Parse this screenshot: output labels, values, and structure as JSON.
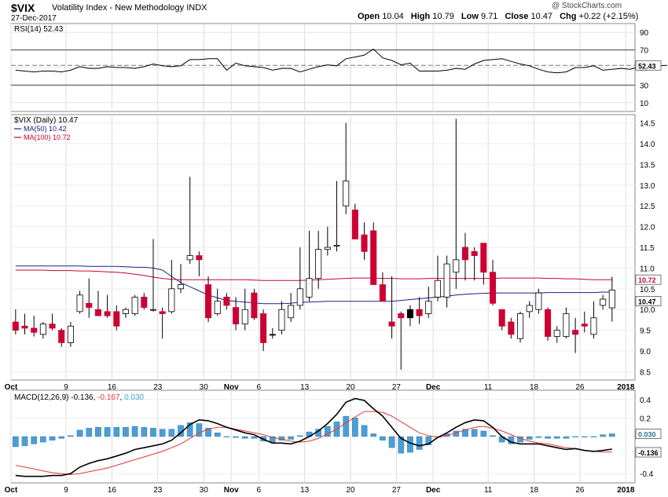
{
  "header": {
    "symbol": "$VIX",
    "name": "Volatility Index - New Methodology  INDX",
    "date": "27-Dec-2017",
    "watermark": "@ StockCharts.com",
    "open_label": "Open",
    "open": "10.04",
    "high_label": "High",
    "high": "10.79",
    "low_label": "Low",
    "low": "9.71",
    "close_label": "Close",
    "close": "10.47",
    "chg_label": "Chg",
    "chg": "+0.22 (+2.15%)"
  },
  "colors": {
    "up": "#ffffff",
    "down": "#cc0033",
    "flat": "#000000",
    "ma50": "#1a237e",
    "ma100": "#cc0033",
    "macd": "#000000",
    "signal": "#e53935",
    "hist": "#4a9ed6"
  },
  "chart_data": [
    {
      "type": "line",
      "panel": "RSI",
      "legend": "RSI(14) 52.43",
      "ylim": [
        0,
        100
      ],
      "yticks": [
        10,
        30,
        50,
        70,
        90
      ],
      "levels": [
        70,
        30
      ],
      "last_label": "52.43",
      "values": [
        47,
        46,
        45,
        46,
        46,
        45,
        47,
        51,
        49,
        49,
        51,
        50,
        50,
        49,
        51,
        54,
        52,
        51,
        52,
        59,
        59,
        60,
        60,
        47,
        55,
        52,
        51,
        50,
        47,
        49,
        49,
        45,
        48,
        51,
        53,
        52,
        60,
        62,
        64,
        71,
        61,
        58,
        53,
        55,
        46,
        46,
        46,
        47,
        49,
        48,
        54,
        58,
        59,
        60,
        57,
        54,
        52,
        48,
        45,
        44,
        45,
        50,
        50,
        52,
        47,
        48,
        49,
        48,
        51,
        50,
        52,
        52.43
      ],
      "grid": true
    },
    {
      "type": "candlestick",
      "panel": "Price",
      "legend": "$VIX (Daily) 10.47",
      "ylim": [
        8.3,
        14.7
      ],
      "yticks": [
        8.5,
        9.0,
        9.5,
        10.0,
        10.5,
        11.0,
        11.5,
        12.0,
        12.5,
        13.0,
        13.5,
        14.0,
        14.5
      ],
      "xticks": [
        "Oct",
        "9",
        "16",
        "23",
        "30",
        "Nov",
        "6",
        "13",
        "20",
        "27",
        "Dec",
        "11",
        "18",
        "26",
        "2018"
      ],
      "xtick_index": [
        0,
        6,
        11,
        16,
        21,
        24,
        27,
        32,
        37,
        42,
        46,
        52,
        57,
        62,
        67
      ],
      "ohlc": [
        [
          9.7,
          10.0,
          9.4,
          9.5
        ],
        [
          9.6,
          9.9,
          9.4,
          9.55
        ],
        [
          9.55,
          9.85,
          9.35,
          9.45
        ],
        [
          9.4,
          9.7,
          9.3,
          9.65
        ],
        [
          9.65,
          9.9,
          9.5,
          9.55
        ],
        [
          9.5,
          9.55,
          9.1,
          9.2
        ],
        [
          9.2,
          9.7,
          9.1,
          9.6
        ],
        [
          9.95,
          10.45,
          9.9,
          10.35
        ],
        [
          10.15,
          10.75,
          9.8,
          10.05
        ],
        [
          10.0,
          10.45,
          9.85,
          9.85
        ],
        [
          9.95,
          10.35,
          9.8,
          9.85
        ],
        [
          9.95,
          10.1,
          9.5,
          9.6
        ],
        [
          9.9,
          10.05,
          9.8,
          10.0
        ],
        [
          9.9,
          10.35,
          9.85,
          10.3
        ],
        [
          10.3,
          10.4,
          10.0,
          10.05
        ],
        [
          10.0,
          11.7,
          9.95,
          10.0
        ],
        [
          9.95,
          10.05,
          9.3,
          9.9
        ],
        [
          9.95,
          11.2,
          9.9,
          10.5
        ],
        [
          10.5,
          11.1,
          10.4,
          10.6
        ],
        [
          11.2,
          13.2,
          11.1,
          11.3
        ],
        [
          11.3,
          11.4,
          10.8,
          11.2
        ],
        [
          10.6,
          10.8,
          9.7,
          9.8
        ],
        [
          9.9,
          10.5,
          9.85,
          10.2
        ],
        [
          10.3,
          10.4,
          10.0,
          10.1
        ],
        [
          10.05,
          10.3,
          9.5,
          9.65
        ],
        [
          9.65,
          10.5,
          9.5,
          10.0
        ],
        [
          10.4,
          10.5,
          9.75,
          9.8
        ],
        [
          9.9,
          10.0,
          9.0,
          9.2
        ],
        [
          9.4,
          9.55,
          9.3,
          9.4
        ],
        [
          9.5,
          10.2,
          9.4,
          10.0
        ],
        [
          9.8,
          10.4,
          9.7,
          10.1
        ],
        [
          10.1,
          11.5,
          10.0,
          10.5
        ],
        [
          10.3,
          11.9,
          10.2,
          10.75
        ],
        [
          10.75,
          11.9,
          10.5,
          11.45
        ],
        [
          11.45,
          12.0,
          11.3,
          11.5
        ],
        [
          11.55,
          13.1,
          11.4,
          11.55
        ],
        [
          12.5,
          14.5,
          12.3,
          13.1
        ],
        [
          12.4,
          12.55,
          11.7,
          11.7
        ],
        [
          11.8,
          12.1,
          11.2,
          11.4
        ],
        [
          11.9,
          12.1,
          10.6,
          10.6
        ],
        [
          10.6,
          10.9,
          10.2,
          10.2
        ],
        [
          9.7,
          10.8,
          9.3,
          9.6
        ],
        [
          9.9,
          9.95,
          8.55,
          9.8
        ],
        [
          9.8,
          10.1,
          9.6,
          10.0
        ],
        [
          10.0,
          10.3,
          9.65,
          9.85
        ],
        [
          9.9,
          10.55,
          9.8,
          10.2
        ],
        [
          10.3,
          11.3,
          10.2,
          10.7
        ],
        [
          10.3,
          11.3,
          10.05,
          11.1
        ],
        [
          10.9,
          14.6,
          10.5,
          11.2
        ],
        [
          11.5,
          11.85,
          10.7,
          11.2
        ],
        [
          11.4,
          11.5,
          10.7,
          11.3
        ],
        [
          11.6,
          11.6,
          10.6,
          10.9
        ],
        [
          10.9,
          11.2,
          10.1,
          10.15
        ],
        [
          10.0,
          10.0,
          9.5,
          9.6
        ],
        [
          9.7,
          9.8,
          9.3,
          9.4
        ],
        [
          9.3,
          9.95,
          9.2,
          9.9
        ],
        [
          9.95,
          10.2,
          9.8,
          10.1
        ],
        [
          10.0,
          10.5,
          9.9,
          10.4
        ],
        [
          10.0,
          10.05,
          9.25,
          9.35
        ],
        [
          9.35,
          9.6,
          9.2,
          9.5
        ],
        [
          9.35,
          10.05,
          9.3,
          9.9
        ],
        [
          9.5,
          9.8,
          8.95,
          9.4
        ],
        [
          9.65,
          9.95,
          9.45,
          9.6
        ],
        [
          9.4,
          10.2,
          9.3,
          9.8
        ],
        [
          10.1,
          10.35,
          10.0,
          10.25
        ],
        [
          10.04,
          10.79,
          9.71,
          10.47
        ]
      ],
      "series": [
        {
          "name": "MA(50) 10.42",
          "last_label": "10.42",
          "values": [
            11.05,
            11.05,
            11.05,
            11.05,
            11.05,
            11.05,
            11.05,
            11.05,
            11.04,
            11.04,
            11.04,
            11.04,
            11.03,
            11.02,
            11.02,
            11.0,
            10.95,
            10.8,
            10.65,
            10.55,
            10.45,
            10.35,
            10.28,
            10.22,
            10.2,
            10.18,
            10.16,
            10.14,
            10.14,
            10.14,
            10.15,
            10.18,
            10.18,
            10.19,
            10.2,
            10.2,
            10.2,
            10.2,
            10.2,
            10.2,
            10.2,
            10.2,
            10.22,
            10.24,
            10.26,
            10.28,
            10.3,
            10.32,
            10.35,
            10.37,
            10.38,
            10.39,
            10.4,
            10.4,
            10.4,
            10.4,
            10.4,
            10.4,
            10.41,
            10.41,
            10.41,
            10.41,
            10.41,
            10.41,
            10.42,
            10.42
          ]
        },
        {
          "name": "MA(100) 10.72",
          "last_label": "10.72",
          "values": [
            10.95,
            10.95,
            10.95,
            10.95,
            10.94,
            10.94,
            10.94,
            10.93,
            10.93,
            10.92,
            10.91,
            10.9,
            10.88,
            10.85,
            10.82,
            10.78,
            10.75,
            10.73,
            10.72,
            10.72,
            10.72,
            10.72,
            10.72,
            10.72,
            10.72,
            10.72,
            10.71,
            10.7,
            10.7,
            10.7,
            10.7,
            10.7,
            10.71,
            10.72,
            10.73,
            10.74,
            10.75,
            10.76,
            10.76,
            10.76,
            10.75,
            10.75,
            10.74,
            10.74,
            10.74,
            10.75,
            10.75,
            10.75,
            10.75,
            10.75,
            10.75,
            10.75,
            10.75,
            10.76,
            10.76,
            10.76,
            10.76,
            10.76,
            10.75,
            10.75,
            10.74,
            10.74,
            10.73,
            10.72,
            10.72,
            10.72
          ]
        }
      ],
      "last_price_label": "10.47",
      "grid": true
    },
    {
      "type": "line",
      "panel": "MACD",
      "legend_prefix": "MACD(12,26,9) -0.136, ",
      "legend_signal": "-0.167",
      "legend_sep": ", ",
      "legend_hist": "0.030",
      "ylim": [
        -0.5,
        0.5
      ],
      "yticks": [
        -0.4,
        0.2,
        0.4
      ],
      "xticks": [
        "Oct",
        "9",
        "16",
        "23",
        "30",
        "Nov",
        "6",
        "13",
        "20",
        "27",
        "Dec",
        "11",
        "18",
        "26",
        "2018"
      ],
      "xtick_index": [
        0,
        6,
        11,
        16,
        21,
        24,
        27,
        32,
        37,
        42,
        46,
        52,
        57,
        62,
        67
      ],
      "last_labels": [
        "0.030",
        "-0.136"
      ],
      "series": [
        {
          "name": "MACD",
          "values": [
            -0.42,
            -0.43,
            -0.43,
            -0.43,
            -0.42,
            -0.42,
            -0.4,
            -0.33,
            -0.29,
            -0.26,
            -0.24,
            -0.21,
            -0.18,
            -0.14,
            -0.12,
            -0.1,
            -0.08,
            -0.04,
            0.04,
            0.13,
            0.18,
            0.17,
            0.14,
            0.1,
            0.07,
            0.04,
            0.02,
            -0.03,
            -0.07,
            -0.07,
            -0.08,
            -0.05,
            0.0,
            0.06,
            0.14,
            0.24,
            0.37,
            0.41,
            0.39,
            0.3,
            0.22,
            0.1,
            -0.02,
            -0.07,
            -0.1,
            -0.08,
            -0.01,
            0.04,
            0.1,
            0.15,
            0.18,
            0.17,
            0.1,
            0.0,
            -0.06,
            -0.08,
            -0.08,
            -0.08,
            -0.1,
            -0.12,
            -0.14,
            -0.13,
            -0.15,
            -0.16,
            -0.15,
            -0.136
          ]
        },
        {
          "name": "Signal",
          "values": [
            -0.31,
            -0.33,
            -0.35,
            -0.37,
            -0.39,
            -0.4,
            -0.41,
            -0.4,
            -0.38,
            -0.36,
            -0.34,
            -0.31,
            -0.28,
            -0.25,
            -0.22,
            -0.19,
            -0.16,
            -0.12,
            -0.08,
            -0.02,
            0.04,
            0.08,
            0.1,
            0.1,
            0.08,
            0.06,
            0.04,
            0.02,
            -0.01,
            -0.03,
            -0.05,
            -0.06,
            -0.05,
            -0.02,
            0.03,
            0.08,
            0.15,
            0.21,
            0.27,
            0.27,
            0.26,
            0.22,
            0.16,
            0.1,
            0.04,
            0.01,
            -0.01,
            0.01,
            0.04,
            0.07,
            0.1,
            0.11,
            0.09,
            0.06,
            0.02,
            -0.02,
            -0.05,
            -0.07,
            -0.08,
            -0.1,
            -0.12,
            -0.13,
            -0.15,
            -0.16,
            -0.167,
            -0.167
          ]
        },
        {
          "name": "Histogram",
          "values": [
            -0.11,
            -0.1,
            -0.08,
            -0.06,
            -0.04,
            -0.02,
            0.01,
            0.07,
            0.09,
            0.1,
            0.1,
            0.1,
            0.1,
            0.11,
            0.1,
            0.09,
            0.08,
            0.08,
            0.12,
            0.15,
            0.14,
            0.09,
            0.04,
            0.0,
            -0.01,
            -0.02,
            -0.02,
            -0.05,
            -0.06,
            -0.04,
            -0.03,
            0.01,
            0.05,
            0.08,
            0.11,
            0.16,
            0.22,
            0.2,
            0.12,
            0.03,
            -0.04,
            -0.12,
            -0.18,
            -0.17,
            -0.14,
            -0.09,
            0.0,
            0.03,
            0.06,
            0.08,
            0.08,
            0.06,
            0.01,
            -0.06,
            -0.08,
            -0.06,
            -0.03,
            -0.01,
            -0.02,
            -0.02,
            -0.02,
            0.0,
            0.0,
            0.0,
            0.02,
            0.03
          ]
        }
      ],
      "grid": true
    }
  ]
}
